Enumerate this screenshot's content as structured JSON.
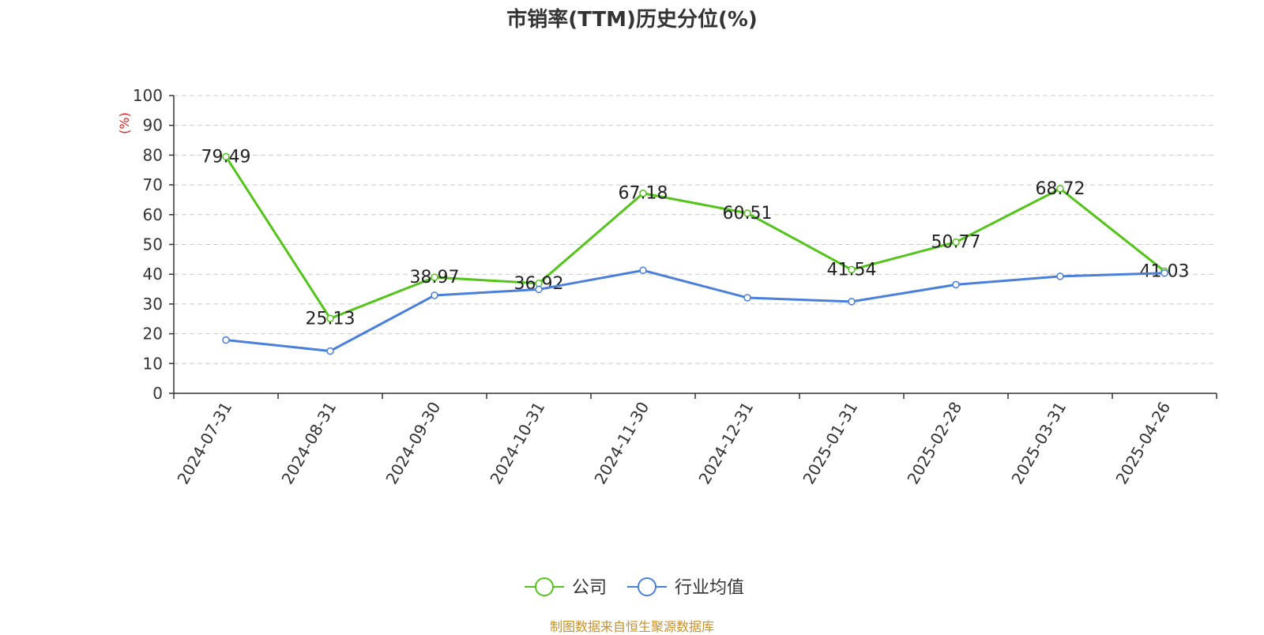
{
  "title": "市销率(TTM)历史分位(%)",
  "footer": "制图数据来自恒生聚源数据库",
  "chart_data": {
    "type": "line",
    "title": "市销率(TTM)历史分位(%)",
    "ylabel": "(%)",
    "xlabel": "",
    "ylim": [
      0,
      100
    ],
    "yticks": [
      0,
      10,
      20,
      30,
      40,
      50,
      60,
      70,
      80,
      90,
      100
    ],
    "grid": true,
    "legend_position": "bottom-center",
    "categories": [
      "2024-07-31",
      "2024-08-31",
      "2024-09-30",
      "2024-10-31",
      "2024-11-30",
      "2024-12-31",
      "2025-01-31",
      "2025-02-28",
      "2025-03-31",
      "2025-04-26"
    ],
    "series": [
      {
        "name": "公司",
        "color": "#52c41a",
        "show_labels": true,
        "values": [
          79.49,
          25.13,
          38.97,
          36.92,
          67.18,
          60.51,
          41.54,
          50.77,
          68.72,
          41.03
        ]
      },
      {
        "name": "行业均值",
        "color": "#4a7fdc",
        "show_labels": false,
        "values": [
          17.9,
          14.2,
          32.9,
          34.9,
          41.3,
          32.1,
          30.8,
          36.5,
          39.3,
          40.4
        ]
      }
    ]
  }
}
